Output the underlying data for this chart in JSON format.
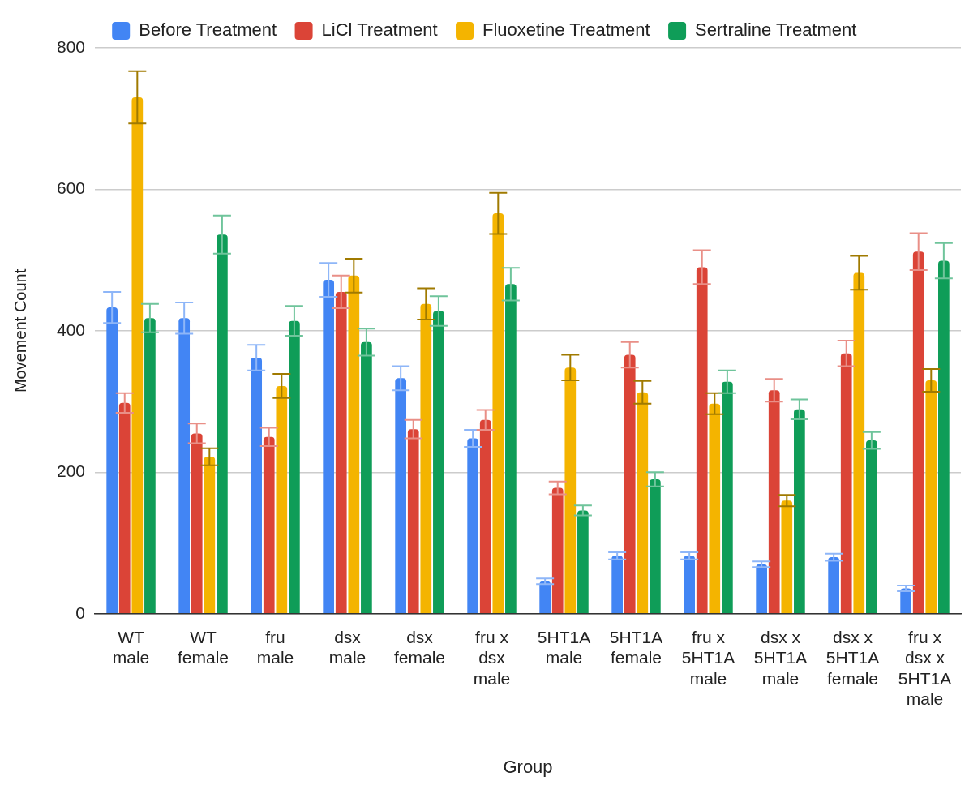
{
  "chart_data": {
    "type": "bar",
    "xlabel": "Group",
    "ylabel": "Movement Count",
    "categories": [
      "WT male",
      "WT female",
      "fru male",
      "dsx male",
      "dsx female",
      "fru x dsx male",
      "5HT1A male",
      "5HT1A female",
      "fru x 5HT1A male",
      "dsx x 5HT1A male",
      "dsx x 5HT1A female",
      "fru x dsx x 5HT1A male"
    ],
    "series": [
      {
        "name": "Before Treatment",
        "color": "#4285f4",
        "values": [
          433,
          418,
          362,
          472,
          333,
          248,
          46,
          82,
          82,
          70,
          80,
          36
        ],
        "errors": [
          22,
          22,
          18,
          24,
          17,
          12,
          4,
          5,
          5,
          4,
          5,
          4
        ]
      },
      {
        "name": "LiCl Treatment",
        "color": "#db4437",
        "values": [
          298,
          255,
          250,
          455,
          261,
          274,
          178,
          366,
          490,
          316,
          368,
          512
        ],
        "errors": [
          14,
          14,
          13,
          23,
          13,
          14,
          9,
          18,
          24,
          16,
          18,
          26
        ]
      },
      {
        "name": "Fluoxetine Treatment",
        "color": "#f4b400",
        "values": [
          730,
          222,
          322,
          478,
          438,
          566,
          348,
          313,
          297,
          160,
          482,
          330
        ],
        "errors": [
          37,
          12,
          17,
          24,
          22,
          29,
          18,
          16,
          15,
          8,
          24,
          16
        ]
      },
      {
        "name": "Sertraline Treatment",
        "color": "#0f9d58",
        "values": [
          418,
          536,
          414,
          384,
          428,
          466,
          146,
          190,
          328,
          289,
          245,
          499
        ],
        "errors": [
          20,
          27,
          21,
          19,
          21,
          23,
          7,
          10,
          16,
          14,
          12,
          25
        ]
      }
    ],
    "ylim": [
      0,
      800
    ],
    "yticks": [
      0,
      200,
      400,
      600,
      800
    ],
    "grid": "y",
    "legend": "top"
  }
}
